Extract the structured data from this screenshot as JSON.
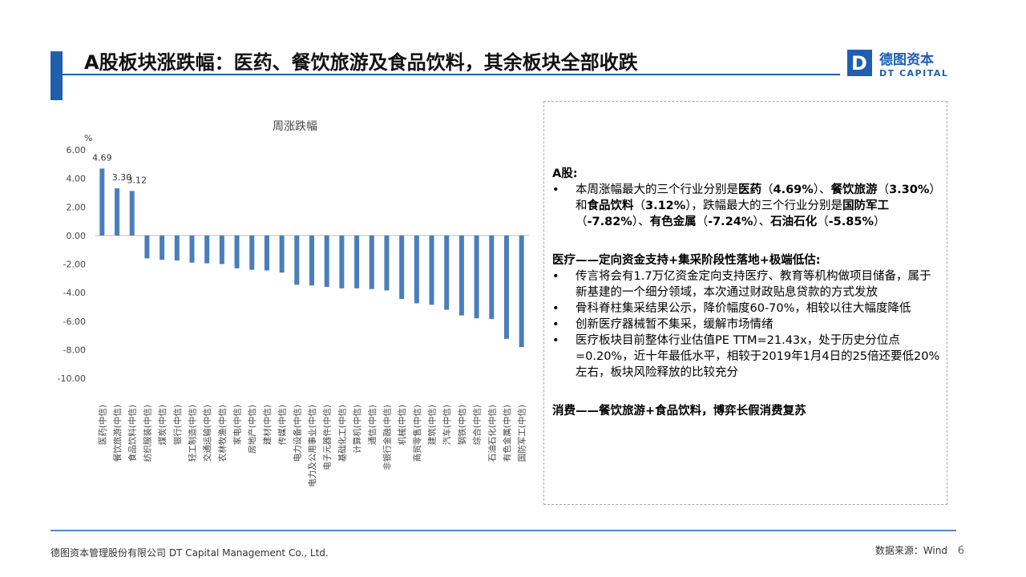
{
  "header": {
    "title": "A股板块涨跌幅：医药、餐饮旅游及食品饮料，其余板块全部收跌",
    "logo_cn": "德图资本",
    "logo_en": "DT CAPITAL"
  },
  "chart_data": {
    "type": "bar",
    "title": "周涨跌幅",
    "y_unit": "%",
    "color": "#4a7ebb",
    "grid": false,
    "categories": [
      "医药(中信)",
      "餐饮旅游(中信)",
      "食品饮料(中信)",
      "纺织服装(中信)",
      "煤炭(中信)",
      "银行(中信)",
      "轻工制造(中信)",
      "交通运输(中信)",
      "农林牧渔(中信)",
      "家电(中信)",
      "房地产(中信)",
      "建材(中信)",
      "传媒(中信)",
      "电力设备(中信)",
      "电力及公用事业(中信)",
      "电子元器件(中信)",
      "基础化工(中信)",
      "计算机(中信)",
      "通信(中信)",
      "非银行金融(中信)",
      "机械(中信)",
      "商贸零售(中信)",
      "建筑(中信)",
      "汽车(中信)",
      "钢铁(中信)",
      "综合(中信)",
      "石油石化(中信)",
      "有色金属(中信)",
      "国防军工(中信)"
    ],
    "values": [
      4.69,
      3.3,
      3.12,
      -1.6,
      -1.7,
      -1.75,
      -1.9,
      -1.95,
      -2.0,
      -2.3,
      -2.4,
      -2.45,
      -2.6,
      -3.45,
      -3.5,
      -3.6,
      -3.7,
      -3.7,
      -3.75,
      -3.85,
      -4.45,
      -4.75,
      -4.85,
      -5.2,
      -5.6,
      -5.8,
      -5.85,
      -7.24,
      -7.82
    ],
    "value_labels": [
      "4.69",
      "3.30",
      "3.12",
      null,
      null,
      null,
      null,
      null,
      null,
      null,
      null,
      null,
      null,
      null,
      null,
      null,
      null,
      null,
      null,
      null,
      null,
      null,
      null,
      null,
      null,
      null,
      null,
      null,
      null
    ],
    "ylim": [
      -10,
      6
    ],
    "yticks": [
      {
        "value": 6,
        "label": "6.00"
      },
      {
        "value": 4,
        "label": "4.00"
      },
      {
        "value": 2,
        "label": "2.00"
      },
      {
        "value": 0,
        "label": "0.00"
      },
      {
        "value": -2,
        "label": "-2.00"
      },
      {
        "value": -4,
        "label": "-4.00"
      },
      {
        "value": -6,
        "label": "-6.00"
      },
      {
        "value": -8,
        "label": "-8.00"
      },
      {
        "value": -10,
        "label": "-10.00"
      }
    ]
  },
  "panel": {
    "sections": [
      {
        "heading": "A股:",
        "bullets": [
          [
            {
              "t": "本周涨幅最大的三个行业分别是"
            },
            {
              "t": "医药",
              "b": true
            },
            {
              "t": "（"
            },
            {
              "t": "4.69%",
              "b": true
            },
            {
              "t": "）、"
            },
            {
              "t": "餐饮旅游",
              "b": true
            },
            {
              "t": "（"
            },
            {
              "t": "3.30%",
              "b": true
            },
            {
              "t": "）和"
            },
            {
              "t": "食品饮料",
              "b": true
            },
            {
              "t": "（"
            },
            {
              "t": "3.12%",
              "b": true
            },
            {
              "t": "），跌幅最大的三个行业分别是"
            },
            {
              "t": "国防军工",
              "b": true
            },
            {
              "t": "（"
            },
            {
              "t": "-7.82%",
              "b": true
            },
            {
              "t": "）、"
            },
            {
              "t": "有色金属",
              "b": true
            },
            {
              "t": "（"
            },
            {
              "t": "-7.24%",
              "b": true
            },
            {
              "t": "）、"
            },
            {
              "t": "石油石化",
              "b": true
            },
            {
              "t": "（"
            },
            {
              "t": "-5.85%",
              "b": true
            },
            {
              "t": "）"
            }
          ]
        ]
      },
      {
        "heading": "医疗——定向资金支持+集采阶段性落地+极端低估:",
        "bullets": [
          [
            {
              "t": "传言将会有1.7万亿资金定向支持医疗、教育等机构做项目储备，属于新基建的一个细分领域，本次通过财政贴息贷款的方式发放"
            }
          ],
          [
            {
              "t": "骨科脊柱集采结果公示，降价幅度60-70%，相较以往大幅度降低"
            }
          ],
          [
            {
              "t": "创新医疗器械暂不集采，缓解市场情绪"
            }
          ],
          [
            {
              "t": "医疗板块目前整体行业估值PE TTM=21.43x，处于历史分位点=0.20%，近十年最低水平，相较于2019年1月4日的25倍还要低20%左右，板块风险释放的比较充分"
            }
          ]
        ]
      },
      {
        "heading": "消费——餐饮旅游+食品饮料，博弈长假消费复苏",
        "bullets": []
      }
    ]
  },
  "footer": {
    "company": "德图资本管理股份有限公司 DT Capital Management Co., Ltd.",
    "source": "数据来源：Wind",
    "page": "6"
  }
}
